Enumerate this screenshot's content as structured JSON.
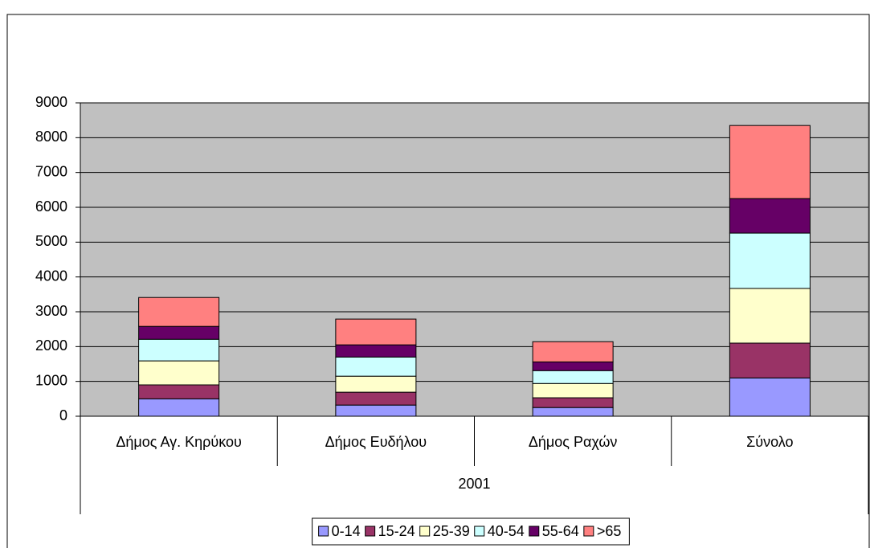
{
  "chart_data": {
    "type": "stacked-bar",
    "categories": [
      "Δήμος Αγ. Κηρύκου",
      "Δήμος Ευδήλου",
      "Δήμος Ραχών",
      "Σύνολο"
    ],
    "category_group": "2001",
    "series": [
      {
        "name": "0-14",
        "color": "#9999ff",
        "values": [
          500,
          320,
          250,
          1100
        ]
      },
      {
        "name": "15-24",
        "color": "#993366",
        "values": [
          400,
          370,
          280,
          1000
        ]
      },
      {
        "name": "25-39",
        "color": "#ffffcc",
        "values": [
          690,
          460,
          410,
          1570
        ]
      },
      {
        "name": "40-54",
        "color": "#ccffff",
        "values": [
          620,
          550,
          370,
          1590
        ]
      },
      {
        "name": "55-64",
        "color": "#660066",
        "values": [
          370,
          350,
          250,
          990
        ]
      },
      {
        "name": ">65",
        "color": "#ff8080",
        "values": [
          830,
          740,
          580,
          2100
        ]
      }
    ],
    "ylim": [
      0,
      9000
    ],
    "yticks": [
      0,
      1000,
      2000,
      3000,
      4000,
      5000,
      6000,
      7000,
      8000,
      9000
    ],
    "grid": true,
    "legend": "bottom"
  }
}
